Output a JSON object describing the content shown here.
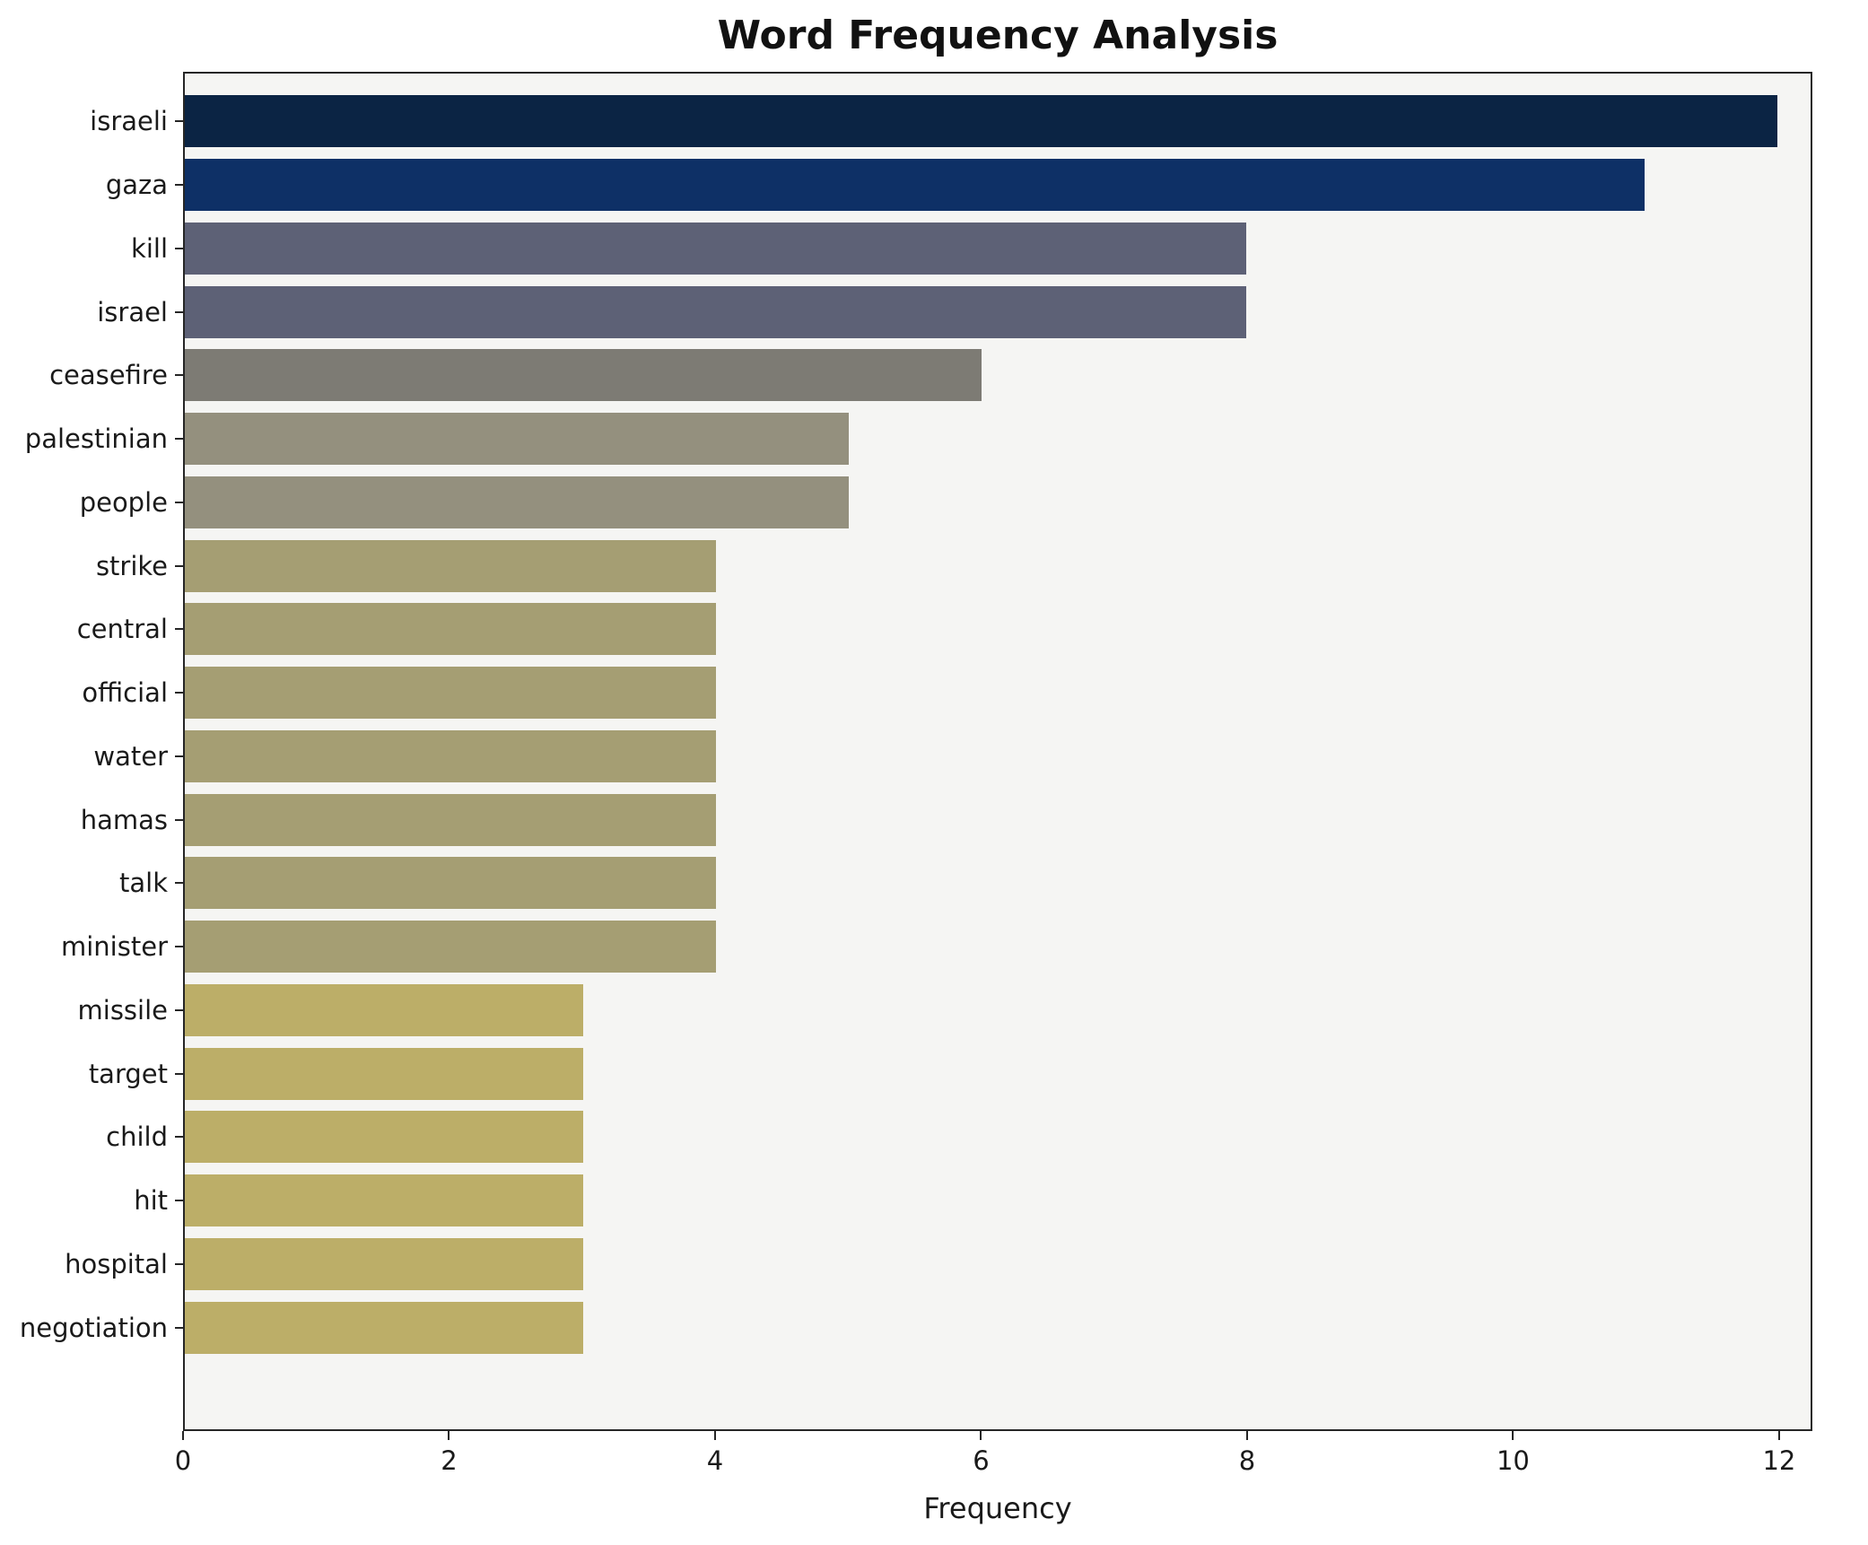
{
  "chart_data": {
    "type": "bar",
    "orientation": "horizontal",
    "title": "Word Frequency Analysis",
    "xlabel": "Frequency",
    "ylabel": "",
    "categories": [
      "israeli",
      "gaza",
      "kill",
      "israel",
      "ceasefire",
      "palestinian",
      "people",
      "strike",
      "central",
      "official",
      "water",
      "hamas",
      "talk",
      "minister",
      "missile",
      "target",
      "child",
      "hit",
      "hospital",
      "negotiation"
    ],
    "values": [
      12,
      11,
      8,
      8,
      6,
      5,
      5,
      4,
      4,
      4,
      4,
      4,
      4,
      4,
      3,
      3,
      3,
      3,
      3,
      3
    ],
    "xlim": [
      0,
      12.25
    ],
    "xticks": [
      0,
      2,
      4,
      6,
      8,
      10,
      12
    ],
    "grid": false,
    "legend": "none",
    "bar_colors": [
      "#0b2444",
      "#0e3066",
      "#5d6176",
      "#5d6176",
      "#7d7b74",
      "#94907e",
      "#94907e",
      "#a59e73",
      "#a59e73",
      "#a59e73",
      "#a59e73",
      "#a59e73",
      "#a59e73",
      "#a59e73",
      "#bcae68",
      "#bcae68",
      "#bcae68",
      "#bcae68",
      "#bcae68",
      "#bcae68"
    ],
    "plot_background": "#f5f5f3",
    "figure_background": "#ffffff",
    "axis_color": "#262626"
  }
}
